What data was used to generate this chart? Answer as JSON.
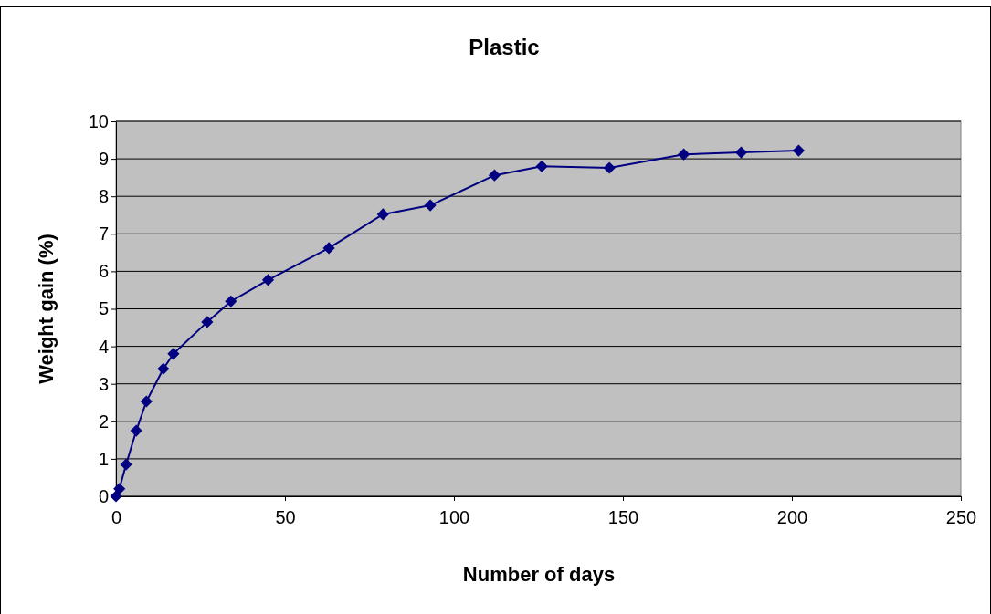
{
  "chart_data": {
    "type": "line",
    "title": "Plastic",
    "xlabel": "Number of days",
    "ylabel": "Weight gain (%)",
    "x": [
      0,
      1,
      3,
      6,
      9,
      14,
      17,
      27,
      34,
      45,
      63,
      79,
      93,
      112,
      126,
      146,
      168,
      185,
      202
    ],
    "series": [
      {
        "color": "#000080",
        "values": [
          0,
          0.2,
          0.85,
          1.75,
          2.53,
          3.4,
          3.8,
          4.65,
          5.2,
          5.77,
          6.62,
          7.52,
          7.76,
          8.56,
          8.8,
          8.76,
          9.12,
          9.17,
          9.22
        ]
      }
    ],
    "xlim": [
      0,
      250
    ],
    "xticks": [
      0,
      50,
      100,
      150,
      200,
      250
    ],
    "ylim": [
      0,
      10
    ],
    "yticks": [
      0,
      1,
      2,
      3,
      4,
      5,
      6,
      7,
      8,
      9,
      10
    ],
    "grid": "y",
    "marker": "diamond",
    "line_style": "solid"
  }
}
